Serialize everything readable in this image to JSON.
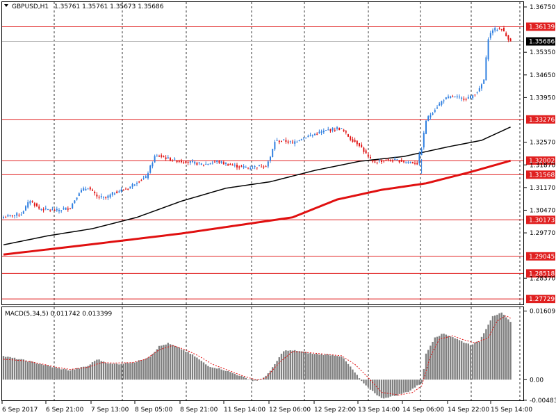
{
  "header": {
    "symbol_timeframe": "GBPUSD,H1",
    "ohlc_text": "1.35761 1.35761 1.35673 1.35686"
  },
  "colors": {
    "background": "#ffffff",
    "bull_candle": "#2f7fe0",
    "bear_candle": "#e01414",
    "ma_slow": "#e01010",
    "ma_fast": "#000000",
    "level_line": "#e02020",
    "price_tag_text": "#ffffff",
    "histogram": "#808080",
    "signal_line": "#e01010"
  },
  "chart_data": [
    {
      "type": "candlestick",
      "title": "GBPUSD,H1",
      "ylim": [
        1.2756,
        1.369
      ],
      "y_ticks": [
        "1.36750",
        "1.35350",
        "1.34650",
        "1.33950",
        "1.32570",
        "1.31870",
        "1.31170",
        "1.30470",
        "1.29770",
        "1.28370"
      ],
      "x_ticks": [
        "6 Sep 2017",
        "6 Sep 21:00",
        "7 Sep 13:00",
        "8 Sep 05:00",
        "8 Sep 21:00",
        "11 Sep 14:00",
        "12 Sep 06:00",
        "12 Sep 22:00",
        "13 Sep 14:00",
        "14 Sep 06:00",
        "14 Sep 22:00",
        "15 Sep 14:00"
      ],
      "grid": "vertical dashed",
      "current_price": "1.35686",
      "levels": [
        "1.36139",
        "1.33276",
        "1.32002",
        "1.31568",
        "1.30173",
        "1.29045",
        "1.28518",
        "1.27729"
      ],
      "close_anchors": [
        [
          0,
          1.3026
        ],
        [
          8,
          1.3036
        ],
        [
          12,
          1.3078
        ],
        [
          16,
          1.3052
        ],
        [
          24,
          1.3046
        ],
        [
          30,
          1.3055
        ],
        [
          34,
          1.3103
        ],
        [
          38,
          1.3118
        ],
        [
          42,
          1.3088
        ],
        [
          46,
          1.3085
        ],
        [
          50,
          1.3102
        ],
        [
          56,
          1.3115
        ],
        [
          60,
          1.3135
        ],
        [
          64,
          1.3148
        ],
        [
          68,
          1.3212
        ],
        [
          70,
          1.3215
        ],
        [
          76,
          1.3202
        ],
        [
          84,
          1.3195
        ],
        [
          90,
          1.3188
        ],
        [
          96,
          1.3198
        ],
        [
          100,
          1.319
        ],
        [
          106,
          1.3182
        ],
        [
          110,
          1.3178
        ],
        [
          114,
          1.3182
        ],
        [
          118,
          1.3185
        ],
        [
          120,
          1.321
        ],
        [
          122,
          1.326
        ],
        [
          126,
          1.3262
        ],
        [
          130,
          1.3255
        ],
        [
          134,
          1.327
        ],
        [
          140,
          1.3282
        ],
        [
          146,
          1.3295
        ],
        [
          150,
          1.33
        ],
        [
          152,
          1.3298
        ],
        [
          156,
          1.3268
        ],
        [
          160,
          1.325
        ],
        [
          164,
          1.321
        ],
        [
          166,
          1.3195
        ],
        [
          172,
          1.3202
        ],
        [
          178,
          1.32
        ],
        [
          182,
          1.3196
        ],
        [
          186,
          1.3192
        ],
        [
          188,
          1.324
        ],
        [
          190,
          1.3325
        ],
        [
          194,
          1.336
        ],
        [
          198,
          1.339
        ],
        [
          202,
          1.3398
        ],
        [
          206,
          1.3392
        ],
        [
          210,
          1.3396
        ],
        [
          214,
          1.342
        ],
        [
          216,
          1.345
        ],
        [
          218,
          1.358
        ],
        [
          220,
          1.3605
        ],
        [
          224,
          1.3608
        ],
        [
          226,
          1.3585
        ],
        [
          228,
          1.3572
        ]
      ],
      "ma_fast_anchors": [
        [
          0,
          1.294
        ],
        [
          20,
          1.2968
        ],
        [
          40,
          1.299
        ],
        [
          60,
          1.3025
        ],
        [
          80,
          1.3075
        ],
        [
          100,
          1.3115
        ],
        [
          120,
          1.3135
        ],
        [
          140,
          1.317
        ],
        [
          160,
          1.3198
        ],
        [
          180,
          1.3213
        ],
        [
          200,
          1.3243
        ],
        [
          215,
          1.3263
        ],
        [
          228,
          1.3304
        ]
      ],
      "ma_slow_anchors": [
        [
          0,
          1.291
        ],
        [
          40,
          1.2942
        ],
        [
          80,
          1.2975
        ],
        [
          110,
          1.3005
        ],
        [
          130,
          1.3025
        ],
        [
          150,
          1.308
        ],
        [
          170,
          1.311
        ],
        [
          190,
          1.313
        ],
        [
          210,
          1.3165
        ],
        [
          228,
          1.32
        ]
      ]
    },
    {
      "type": "histogram",
      "title": "MACD(5,34,5) 0.011742 0.013399",
      "ylim": [
        -0.00485,
        0.017
      ],
      "y_ticks": [
        "0.01609",
        "0.00",
        "-0.004835"
      ],
      "hist_anchors": [
        [
          0,
          0.0055
        ],
        [
          10,
          0.0045
        ],
        [
          18,
          0.0035
        ],
        [
          24,
          0.0027
        ],
        [
          30,
          0.0022
        ],
        [
          38,
          0.0032
        ],
        [
          42,
          0.0048
        ],
        [
          48,
          0.0037
        ],
        [
          52,
          0.0037
        ],
        [
          60,
          0.0042
        ],
        [
          66,
          0.0055
        ],
        [
          70,
          0.0078
        ],
        [
          74,
          0.0085
        ],
        [
          80,
          0.0072
        ],
        [
          86,
          0.0055
        ],
        [
          92,
          0.0032
        ],
        [
          98,
          0.0025
        ],
        [
          106,
          0.001
        ],
        [
          112,
          -0.0003
        ],
        [
          116,
          0.0
        ],
        [
          120,
          0.002
        ],
        [
          126,
          0.0068
        ],
        [
          132,
          0.0068
        ],
        [
          140,
          0.006
        ],
        [
          148,
          0.0058
        ],
        [
          152,
          0.0055
        ],
        [
          156,
          0.003
        ],
        [
          162,
          -0.001
        ],
        [
          170,
          -0.0044
        ],
        [
          176,
          -0.0038
        ],
        [
          182,
          -0.0028
        ],
        [
          188,
          -0.0008
        ],
        [
          190,
          0.006
        ],
        [
          194,
          0.01
        ],
        [
          198,
          0.0108
        ],
        [
          202,
          0.01
        ],
        [
          206,
          0.009
        ],
        [
          210,
          0.0082
        ],
        [
          214,
          0.009
        ],
        [
          216,
          0.011
        ],
        [
          220,
          0.015
        ],
        [
          224,
          0.0156
        ],
        [
          228,
          0.0135
        ]
      ],
      "signal_anchors": [
        [
          0,
          0.0048
        ],
        [
          10,
          0.0044
        ],
        [
          18,
          0.0036
        ],
        [
          24,
          0.0029
        ],
        [
          30,
          0.0024
        ],
        [
          38,
          0.0029
        ],
        [
          44,
          0.004
        ],
        [
          50,
          0.0039
        ],
        [
          58,
          0.004
        ],
        [
          64,
          0.0048
        ],
        [
          70,
          0.007
        ],
        [
          76,
          0.008
        ],
        [
          82,
          0.007
        ],
        [
          88,
          0.0055
        ],
        [
          94,
          0.0036
        ],
        [
          100,
          0.0024
        ],
        [
          108,
          0.0008
        ],
        [
          114,
          -0.0001
        ],
        [
          118,
          0.0004
        ],
        [
          124,
          0.004
        ],
        [
          130,
          0.0066
        ],
        [
          138,
          0.0063
        ],
        [
          146,
          0.0059
        ],
        [
          152,
          0.0056
        ],
        [
          158,
          0.0036
        ],
        [
          164,
          0.0005
        ],
        [
          170,
          -0.003
        ],
        [
          178,
          -0.0036
        ],
        [
          184,
          -0.003
        ],
        [
          188,
          -0.0015
        ],
        [
          192,
          0.0055
        ],
        [
          196,
          0.0095
        ],
        [
          202,
          0.0103
        ],
        [
          206,
          0.0095
        ],
        [
          212,
          0.0086
        ],
        [
          218,
          0.0098
        ],
        [
          222,
          0.0138
        ],
        [
          226,
          0.015
        ],
        [
          228,
          0.0144
        ]
      ]
    }
  ]
}
